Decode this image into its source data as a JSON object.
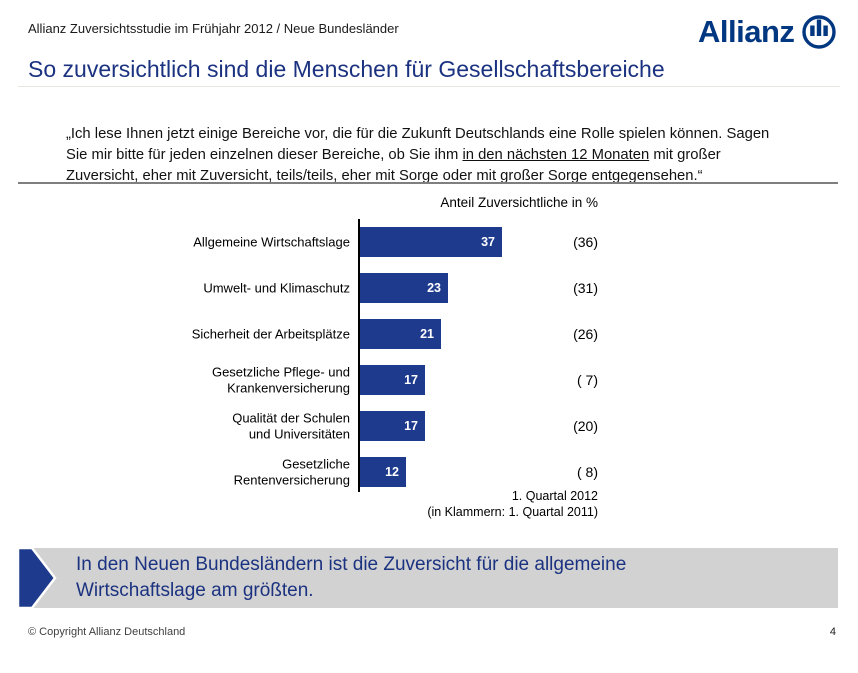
{
  "slide": {
    "header": {
      "study_label": "Allianz Zuversichtsstudie im Frühjahr 2012 / Neue Bundesländer"
    },
    "logo_text": "Allianz",
    "title": "So zuversichtlich sind die Menschen für Gesellschaftsbereiche",
    "quote": {
      "before": "„Ich lese Ihnen jetzt einige Bereiche vor, die für die Zukunft Deutschlands eine Rolle spielen können. Sagen\nSie mir bitte für jeden einzelnen dieser Bereiche, ob Sie ihm ",
      "underlined": "in den nächsten 12 Monaten",
      "after": " mit großer\nZuversicht, eher mit Zuversicht, teils/teils, eher mit Sorge oder mit großer Sorge entgegensehen.“"
    }
  },
  "chart_data": {
    "type": "bar",
    "orientation": "horizontal",
    "title": "Anteil Zuversichtliche in %",
    "categories": [
      "Allgemeine Wirtschaftslage",
      "Umwelt- und Klimaschutz",
      "Sicherheit der Arbeitsplätze",
      "Gesetzliche Pflege- und Krankenversicherung",
      "Qualität der Schulen und Universitäten",
      "Gesetzliche Rentenversicherung"
    ],
    "series": [
      {
        "name": "1. Quartal 2012",
        "values": [
          37,
          23,
          21,
          17,
          17,
          12
        ]
      },
      {
        "name": "1. Quartal 2011",
        "values": [
          36,
          31,
          26,
          7,
          20,
          8
        ]
      }
    ],
    "xlim": [
      0,
      37
    ],
    "bar_color": "#1e3a8c",
    "rows": [
      {
        "label": "Allgemeine Wirtschaftslage",
        "value": 37,
        "paren": "(36)"
      },
      {
        "label": "Umwelt- und Klimaschutz",
        "value": 23,
        "paren": "(31)"
      },
      {
        "label": "Sicherheit der Arbeitsplätze",
        "value": 21,
        "paren": "(26)"
      },
      {
        "label": "Gesetzliche Pflege- und\nKrankenversicherung",
        "value": 17,
        "paren": "( 7)"
      },
      {
        "label": "Qualität der Schulen\nund Universitäten",
        "value": 17,
        "paren": "(20)"
      },
      {
        "label": "Gesetzliche\nRentenversicherung",
        "value": 12,
        "paren": "( 8)"
      }
    ],
    "note": "1. Quartal 2012\n(in Klammern: 1. Quartal 2011)"
  },
  "callout": {
    "text": "In den Neuen Bundesländern ist die Zuversicht für die allgemeine\nWirtschaftslage am größten."
  },
  "footer": {
    "copyright": "© Copyright Allianz Deutschland",
    "page_number": "4"
  },
  "colors": {
    "brand_blue": "#003781",
    "title_blue": "#1b3280",
    "bar_blue": "#1e3a8c",
    "callout_gray": "#d2d2d2"
  }
}
